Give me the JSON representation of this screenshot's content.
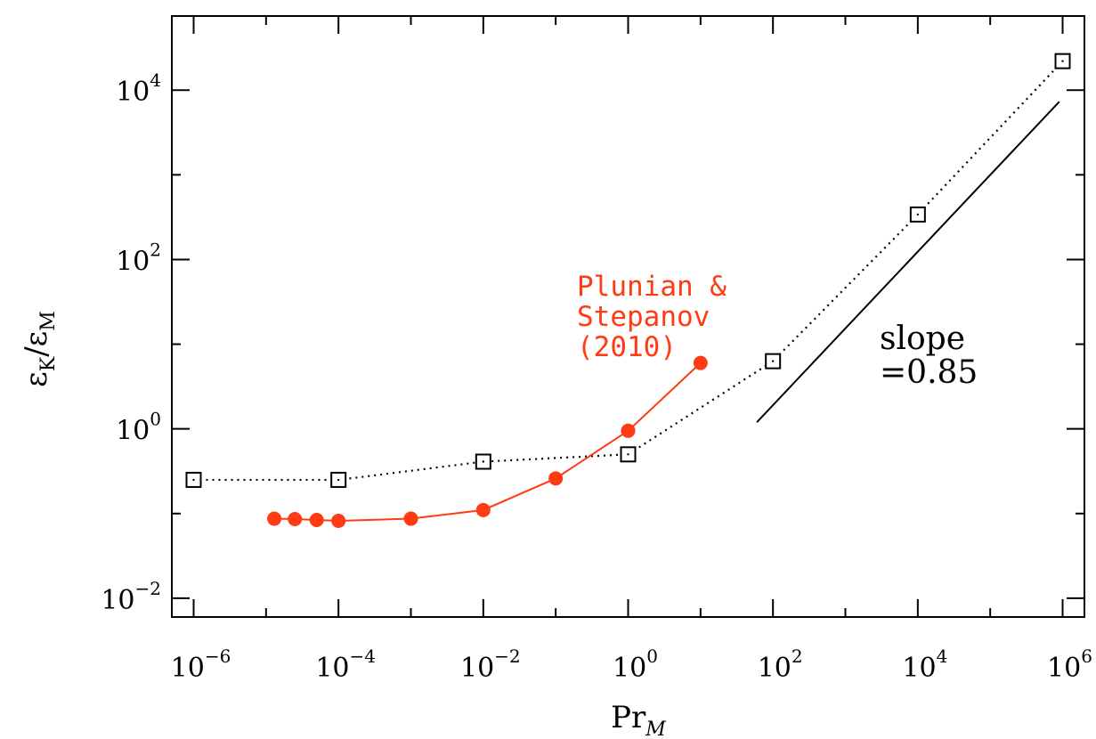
{
  "chart_data": {
    "type": "line",
    "xlabel": "Pr",
    "xlabel_sub": "M",
    "ylabel_main": "ε",
    "ylabel_sub1": "K",
    "ylabel_slash": "/",
    "ylabel_sub2": "M",
    "xscale": "log",
    "yscale": "log",
    "xlim": [
      5e-07,
      2000000.0
    ],
    "ylim": [
      0.006,
      75000
    ],
    "x_ticks": [
      {
        "base": "10",
        "exp": "−6",
        "value": 1e-06
      },
      {
        "base": "10",
        "exp": "−4",
        "value": 0.0001
      },
      {
        "base": "10",
        "exp": "−2",
        "value": 0.01
      },
      {
        "base": "10",
        "exp": "0",
        "value": 1
      },
      {
        "base": "10",
        "exp": "2",
        "value": 100
      },
      {
        "base": "10",
        "exp": "4",
        "value": 10000
      },
      {
        "base": "10",
        "exp": "6",
        "value": 1000000
      }
    ],
    "y_ticks": [
      {
        "base": "10",
        "exp": "−2",
        "value": 0.01
      },
      {
        "base": "10",
        "exp": "0",
        "value": 1
      },
      {
        "base": "10",
        "exp": "2",
        "value": 100
      },
      {
        "base": "10",
        "exp": "4",
        "value": 10000
      }
    ],
    "series": [
      {
        "color": "#000000",
        "line": "dotted",
        "marker": "open-square",
        "x": [
          1e-06,
          0.0001,
          0.01,
          1,
          100,
          10000,
          1000000
        ],
        "y": [
          0.25,
          0.25,
          0.41,
          0.5,
          6.3,
          340,
          22000
        ]
      },
      {
        "color": "#ff3b14",
        "line": "solid",
        "marker": "filled-circle",
        "x": [
          1.3e-05,
          2.5e-05,
          5e-05,
          0.0001,
          0.001,
          0.01,
          0.1,
          1,
          10
        ],
        "y": [
          0.087,
          0.086,
          0.084,
          0.082,
          0.087,
          0.11,
          0.26,
          0.95,
          6.0
        ]
      }
    ],
    "reference_line": {
      "x": [
        60,
        900000
      ],
      "y": [
        1.2,
        7300
      ]
    },
    "annotations": {
      "ref_label_line1": "Plunian &",
      "ref_label_line2": "Stepanov",
      "ref_label_line3": "(2010)",
      "slope_line1": "slope",
      "slope_line2": "=0.85"
    }
  }
}
